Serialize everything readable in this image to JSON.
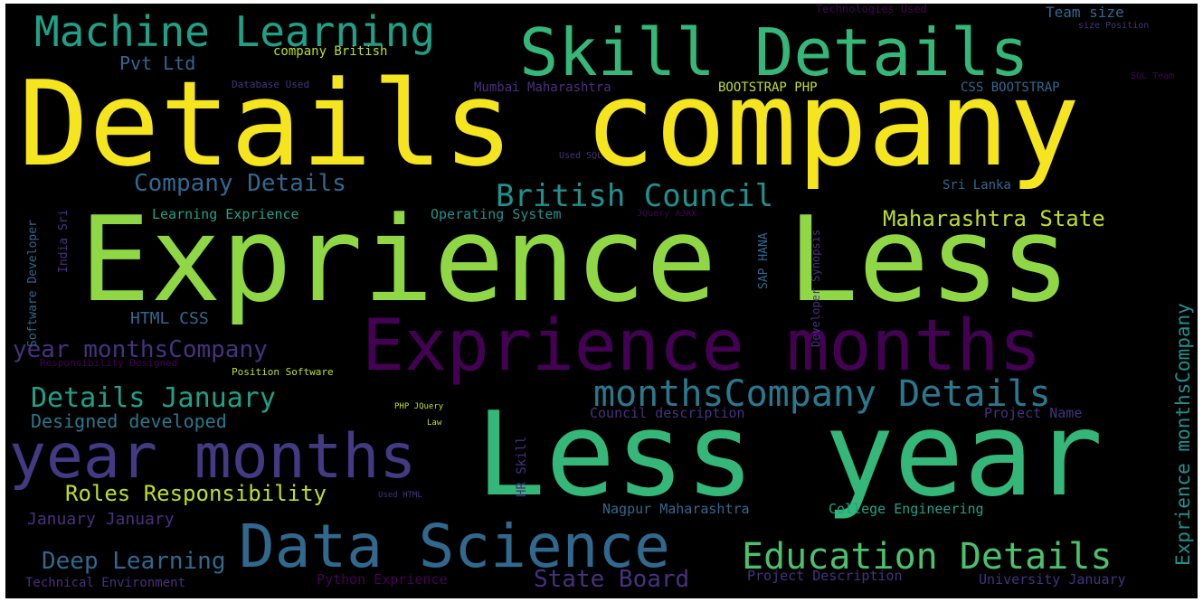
{
  "wordcloud": {
    "background": "#000000",
    "palette": [
      "#440154",
      "#46327e",
      "#31688e",
      "#21918c",
      "#35b779",
      "#8fd744",
      "#f5e51f"
    ],
    "words": {
      "details_company": "Details company",
      "exprience_less": "Exprience Less",
      "less_year": "Less year",
      "exprience_months": "Exprience months",
      "skill_details": "Skill Details",
      "year_months": "year months",
      "data_science": "Data Science",
      "machine_learning": "Machine Learning",
      "monthscompany_details": "monthsCompany Details",
      "education_details": "Education Details",
      "british_council": "British Council",
      "company_details": "Company Details",
      "details_january": "Details January",
      "year_monthscompany": "year monthsCompany",
      "maharashtra_state": "Maharashtra State",
      "roles_responsibility": "Roles Responsibility",
      "deep_learning": "Deep Learning",
      "state_board": "State Board",
      "designed_developed": "Designed developed",
      "pvt_ltd": "Pvt Ltd",
      "html_css": "HTML CSS",
      "january_january": "January January",
      "learning_exprience": "Learning Exprience",
      "operating_system": "Operating System",
      "council_description": "Council description",
      "project_name": "Project Name",
      "nagpur_maharashtra": "Nagpur Maharashtra",
      "college_engineering": "College Engineering",
      "project_description": "Project Description",
      "university_january": "University January",
      "python_exprience": "Python Exprience",
      "technical_environment": "Technical Environment",
      "team_size": "Team size",
      "technologies_used": "Technologies Used",
      "size_position": "size Position",
      "company_british": "company British",
      "database_used": "Database Used",
      "mumbai_maharashtra": "Mumbai Maharashtra",
      "bootstrap_php": "BOOTSTRAP PHP",
      "css_bootstrap": "CSS BOOTSTRAP",
      "sql_team": "SQL Team",
      "used_sql": "Used SQL",
      "sri_lanka": "Sri Lanka",
      "jquery_ajax": "JQuery AJAX",
      "position_software": "Position Software",
      "php_jquery": "PHP JQuery",
      "law": "Law",
      "used_html": "Used HTML",
      "responsibility_designed": "Responsibility Designed",
      "exprience_monthscompany": "Exprience monthsCompany",
      "software_developer": "Software Developer",
      "india_sri": "India Sri",
      "hr_skill": "HR Skill",
      "sap_hana": "SAP HANA",
      "developer_synopsis": "Developer Synopsis"
    }
  }
}
